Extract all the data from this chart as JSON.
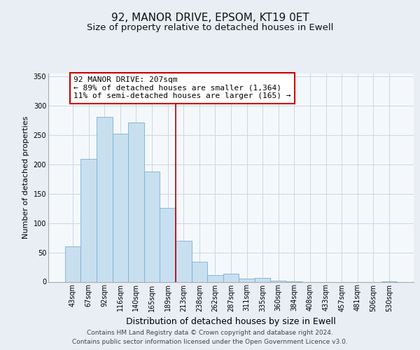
{
  "title": "92, MANOR DRIVE, EPSOM, KT19 0ET",
  "subtitle": "Size of property relative to detached houses in Ewell",
  "xlabel": "Distribution of detached houses by size in Ewell",
  "ylabel": "Number of detached properties",
  "categories": [
    "43sqm",
    "67sqm",
    "92sqm",
    "116sqm",
    "140sqm",
    "165sqm",
    "189sqm",
    "213sqm",
    "238sqm",
    "262sqm",
    "287sqm",
    "311sqm",
    "335sqm",
    "360sqm",
    "384sqm",
    "408sqm",
    "433sqm",
    "457sqm",
    "481sqm",
    "506sqm",
    "530sqm"
  ],
  "values": [
    60,
    210,
    281,
    252,
    272,
    188,
    126,
    70,
    34,
    11,
    14,
    5,
    6,
    2,
    1,
    0,
    0,
    0,
    0,
    0,
    1
  ],
  "bar_color": "#c8dff0",
  "bar_edge_color": "#7ab0d0",
  "vline_x_index": 7,
  "vline_color": "#aa0000",
  "annotation_text": "92 MANOR DRIVE: 207sqm\n← 89% of detached houses are smaller (1,364)\n11% of semi-detached houses are larger (165) →",
  "annotation_box_color": "#ffffff",
  "annotation_box_edge": "#cc0000",
  "ylim": [
    0,
    355
  ],
  "yticks": [
    0,
    50,
    100,
    150,
    200,
    250,
    300,
    350
  ],
  "footer_line1": "Contains HM Land Registry data © Crown copyright and database right 2024.",
  "footer_line2": "Contains public sector information licensed under the Open Government Licence v3.0.",
  "background_color": "#e8eef4",
  "plot_background": "#f5f8fb",
  "grid_color": "#c8d8e8",
  "title_fontsize": 11,
  "subtitle_fontsize": 9.5,
  "xlabel_fontsize": 9,
  "ylabel_fontsize": 8,
  "tick_fontsize": 7,
  "annotation_fontsize": 8,
  "footer_fontsize": 6.5
}
